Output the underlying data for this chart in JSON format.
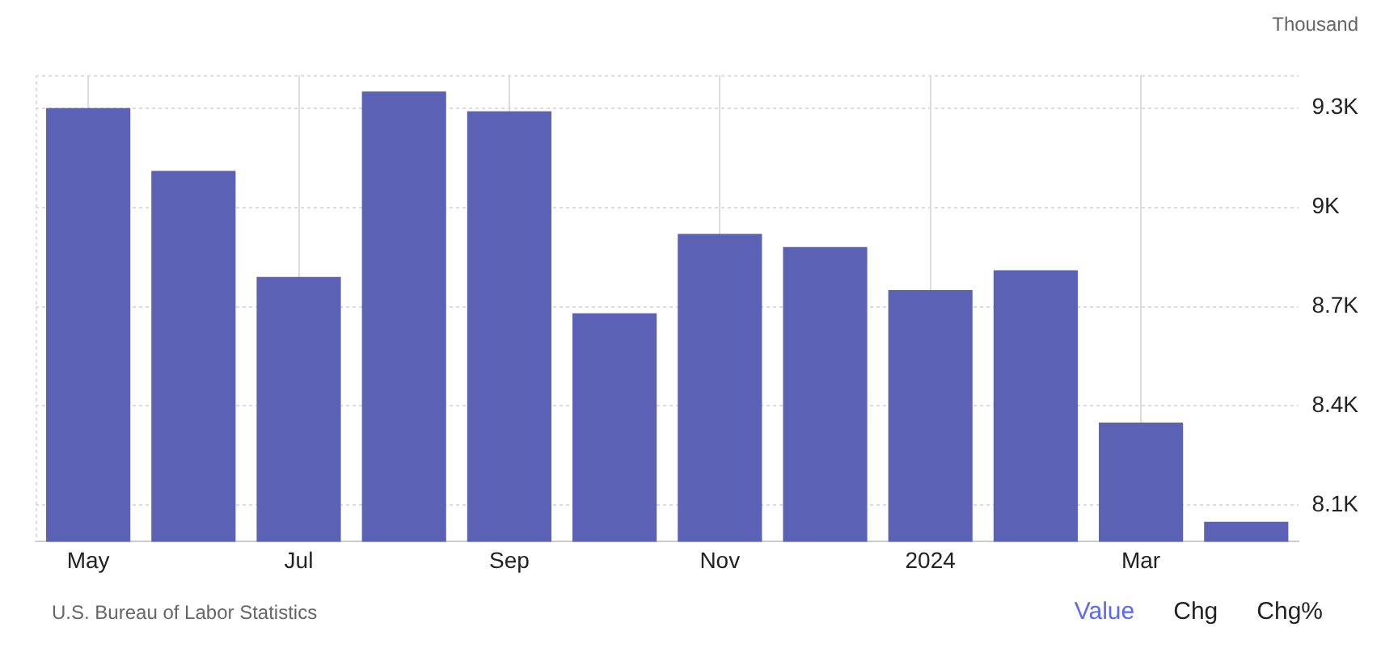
{
  "chart_data": {
    "type": "bar",
    "ylabel": "Thousand",
    "categories": [
      "May",
      null,
      "Jul",
      null,
      "Sep",
      null,
      "Nov",
      null,
      "2024",
      null,
      "Mar",
      null
    ],
    "values": [
      9.3,
      9.11,
      8.79,
      9.35,
      9.29,
      8.68,
      8.92,
      8.88,
      8.75,
      8.81,
      8.35,
      8.05
    ],
    "color": "#5b62b5",
    "ylim": [
      7.99,
      9.4
    ],
    "yticks": [
      {
        "value": 8.1,
        "label": "8.1K"
      },
      {
        "value": 8.4,
        "label": "8.4K"
      },
      {
        "value": 8.7,
        "label": "8.7K"
      },
      {
        "value": 9,
        "label": "9K"
      },
      {
        "value": 9.3,
        "label": "9.3K"
      }
    ],
    "grid": true,
    "annotations": [
      "U.S. Bureau of Labor Statistics",
      "Value",
      "Chg",
      "Chg%"
    ]
  }
}
